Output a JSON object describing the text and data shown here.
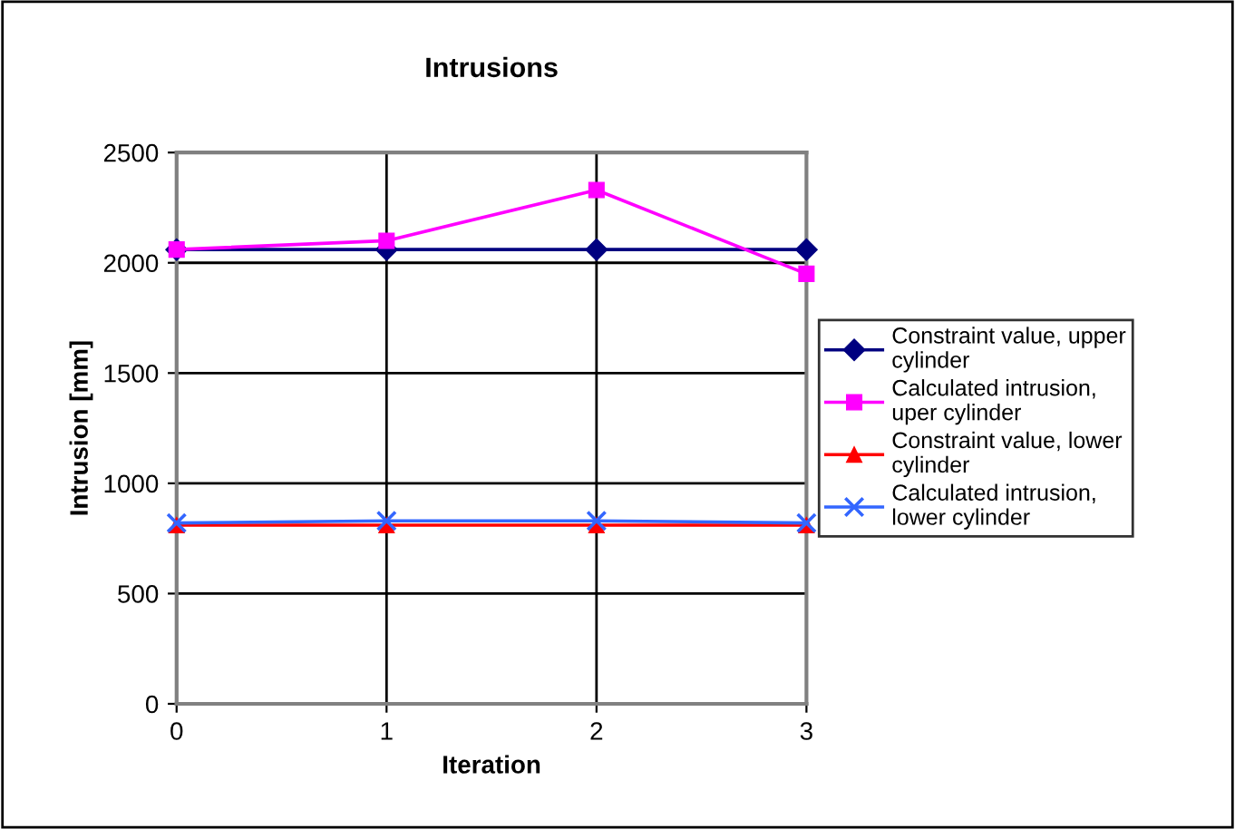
{
  "chart_data": {
    "type": "line",
    "title": "Intrusions",
    "xlabel": "Iteration",
    "ylabel": "Intrusion [mm]",
    "x": [
      0,
      1,
      2,
      3
    ],
    "xlim": [
      0,
      3
    ],
    "xticks": [
      0,
      1,
      2,
      3
    ],
    "ylim": [
      0,
      2500
    ],
    "yticks": [
      0,
      500,
      1000,
      1500,
      2000,
      2500
    ],
    "grid": true,
    "legend": "right",
    "line_style": "solid",
    "series": [
      {
        "name": "Constraint value, upper cylinder",
        "color": "#000080",
        "marker": "diamond",
        "values": [
          2060,
          2060,
          2060,
          2060
        ]
      },
      {
        "name": "Calculated intrusion, uper cylinder",
        "color": "#ff00ff",
        "marker": "square",
        "values": [
          2060,
          2100,
          2330,
          1950
        ]
      },
      {
        "name": "Constraint value, lower cylinder",
        "color": "#ff0000",
        "marker": "triangle",
        "values": [
          810,
          810,
          810,
          810
        ]
      },
      {
        "name": "Calculated intrusion, lower cylinder",
        "color": "#3366ff",
        "marker": "cross",
        "values": [
          820,
          830,
          830,
          820
        ]
      }
    ]
  }
}
